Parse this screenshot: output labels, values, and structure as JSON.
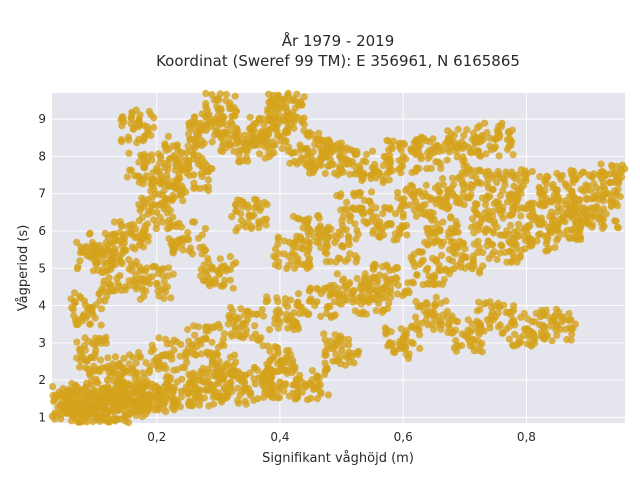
{
  "chart_data": {
    "type": "scatter",
    "title": "År 1979 - 2019",
    "subtitle": "Koordinat (Sweref 99 TM): E 356961, N 6165865",
    "xlabel": "Signifikant våghöjd (m)",
    "ylabel": "Vågperiod (s)",
    "xlim": [
      0.03,
      0.96
    ],
    "ylim": [
      0.85,
      9.7
    ],
    "x_ticks": [
      0.2,
      0.4,
      0.6,
      0.8
    ],
    "x_tick_labels": [
      "0,2",
      "0,4",
      "0,6",
      "0,8"
    ],
    "y_ticks": [
      1,
      2,
      3,
      4,
      5,
      6,
      7,
      8,
      9
    ],
    "y_tick_labels": [
      "1",
      "2",
      "3",
      "4",
      "5",
      "6",
      "7",
      "8",
      "9"
    ],
    "grid": true,
    "marker_color": "#d4a21c",
    "background_color": "#e5e5ee",
    "series": [
      {
        "values": [
          {
            "x": 0.05,
            "y": 1.3
          },
          {
            "x": 0.06,
            "y": 1.4
          },
          {
            "x": 0.08,
            "y": 1.3
          },
          {
            "x": 0.09,
            "y": 1.5
          },
          {
            "x": 0.1,
            "y": 1.25
          },
          {
            "x": 0.12,
            "y": 1.4
          },
          {
            "x": 0.14,
            "y": 1.3
          },
          {
            "x": 0.16,
            "y": 1.45
          },
          {
            "x": 0.18,
            "y": 1.5
          },
          {
            "x": 0.2,
            "y": 1.6
          },
          {
            "x": 0.24,
            "y": 1.7
          },
          {
            "x": 0.28,
            "y": 1.75
          },
          {
            "x": 0.32,
            "y": 1.8
          },
          {
            "x": 0.36,
            "y": 1.9
          },
          {
            "x": 0.4,
            "y": 1.95
          },
          {
            "x": 0.45,
            "y": 1.9
          },
          {
            "x": 0.1,
            "y": 2.7
          },
          {
            "x": 0.1,
            "y": 5.3
          },
          {
            "x": 0.09,
            "y": 3.9
          },
          {
            "x": 0.12,
            "y": 5.5
          },
          {
            "x": 0.14,
            "y": 4.8
          },
          {
            "x": 0.16,
            "y": 5.9
          },
          {
            "x": 0.17,
            "y": 8.8
          },
          {
            "x": 0.18,
            "y": 7.7
          },
          {
            "x": 0.2,
            "y": 6.5
          },
          {
            "x": 0.22,
            "y": 7.2
          },
          {
            "x": 0.24,
            "y": 8.1
          },
          {
            "x": 0.26,
            "y": 7.5
          },
          {
            "x": 0.28,
            "y": 8.7
          },
          {
            "x": 0.3,
            "y": 9.25
          },
          {
            "x": 0.33,
            "y": 8.5
          },
          {
            "x": 0.36,
            "y": 8.3
          },
          {
            "x": 0.38,
            "y": 8.6
          },
          {
            "x": 0.41,
            "y": 9.3
          },
          {
            "x": 0.41,
            "y": 9.1
          },
          {
            "x": 0.44,
            "y": 8.2
          },
          {
            "x": 0.47,
            "y": 8.0
          },
          {
            "x": 0.5,
            "y": 7.9
          },
          {
            "x": 0.55,
            "y": 7.7
          },
          {
            "x": 0.6,
            "y": 8.0
          },
          {
            "x": 0.65,
            "y": 8.1
          },
          {
            "x": 0.7,
            "y": 8.3
          },
          {
            "x": 0.75,
            "y": 8.45
          },
          {
            "x": 0.72,
            "y": 7.3
          },
          {
            "x": 0.78,
            "y": 7.2
          },
          {
            "x": 0.85,
            "y": 7.1
          },
          {
            "x": 0.9,
            "y": 7.2
          },
          {
            "x": 0.95,
            "y": 7.35
          },
          {
            "x": 0.92,
            "y": 6.5
          },
          {
            "x": 0.88,
            "y": 6.2
          },
          {
            "x": 0.82,
            "y": 5.9
          },
          {
            "x": 0.76,
            "y": 5.6
          },
          {
            "x": 0.7,
            "y": 5.3
          },
          {
            "x": 0.64,
            "y": 5.0
          },
          {
            "x": 0.58,
            "y": 4.7
          },
          {
            "x": 0.52,
            "y": 4.4
          },
          {
            "x": 0.46,
            "y": 4.1
          },
          {
            "x": 0.4,
            "y": 3.8
          },
          {
            "x": 0.34,
            "y": 3.5
          },
          {
            "x": 0.28,
            "y": 3.1
          },
          {
            "x": 0.22,
            "y": 2.7
          },
          {
            "x": 0.16,
            "y": 2.3
          },
          {
            "x": 0.12,
            "y": 2.0
          },
          {
            "x": 0.3,
            "y": 2.3
          },
          {
            "x": 0.4,
            "y": 2.5
          },
          {
            "x": 0.5,
            "y": 2.8
          },
          {
            "x": 0.6,
            "y": 3.0
          },
          {
            "x": 0.7,
            "y": 3.2
          },
          {
            "x": 0.8,
            "y": 3.35
          },
          {
            "x": 0.85,
            "y": 3.45
          },
          {
            "x": 0.75,
            "y": 3.7
          },
          {
            "x": 0.65,
            "y": 3.8
          },
          {
            "x": 0.55,
            "y": 4.2
          },
          {
            "x": 0.62,
            "y": 6.8
          },
          {
            "x": 0.68,
            "y": 7.0
          },
          {
            "x": 0.52,
            "y": 6.6
          },
          {
            "x": 0.45,
            "y": 6.0
          },
          {
            "x": 0.35,
            "y": 6.4
          },
          {
            "x": 0.25,
            "y": 5.8
          },
          {
            "x": 0.2,
            "y": 4.6
          },
          {
            "x": 0.3,
            "y": 4.9
          },
          {
            "x": 0.42,
            "y": 5.4
          },
          {
            "x": 0.5,
            "y": 5.6
          },
          {
            "x": 0.58,
            "y": 6.2
          },
          {
            "x": 0.66,
            "y": 6.0
          },
          {
            "x": 0.74,
            "y": 6.3
          },
          {
            "x": 0.8,
            "y": 6.6
          },
          {
            "x": 0.86,
            "y": 6.4
          }
        ]
      }
    ]
  }
}
